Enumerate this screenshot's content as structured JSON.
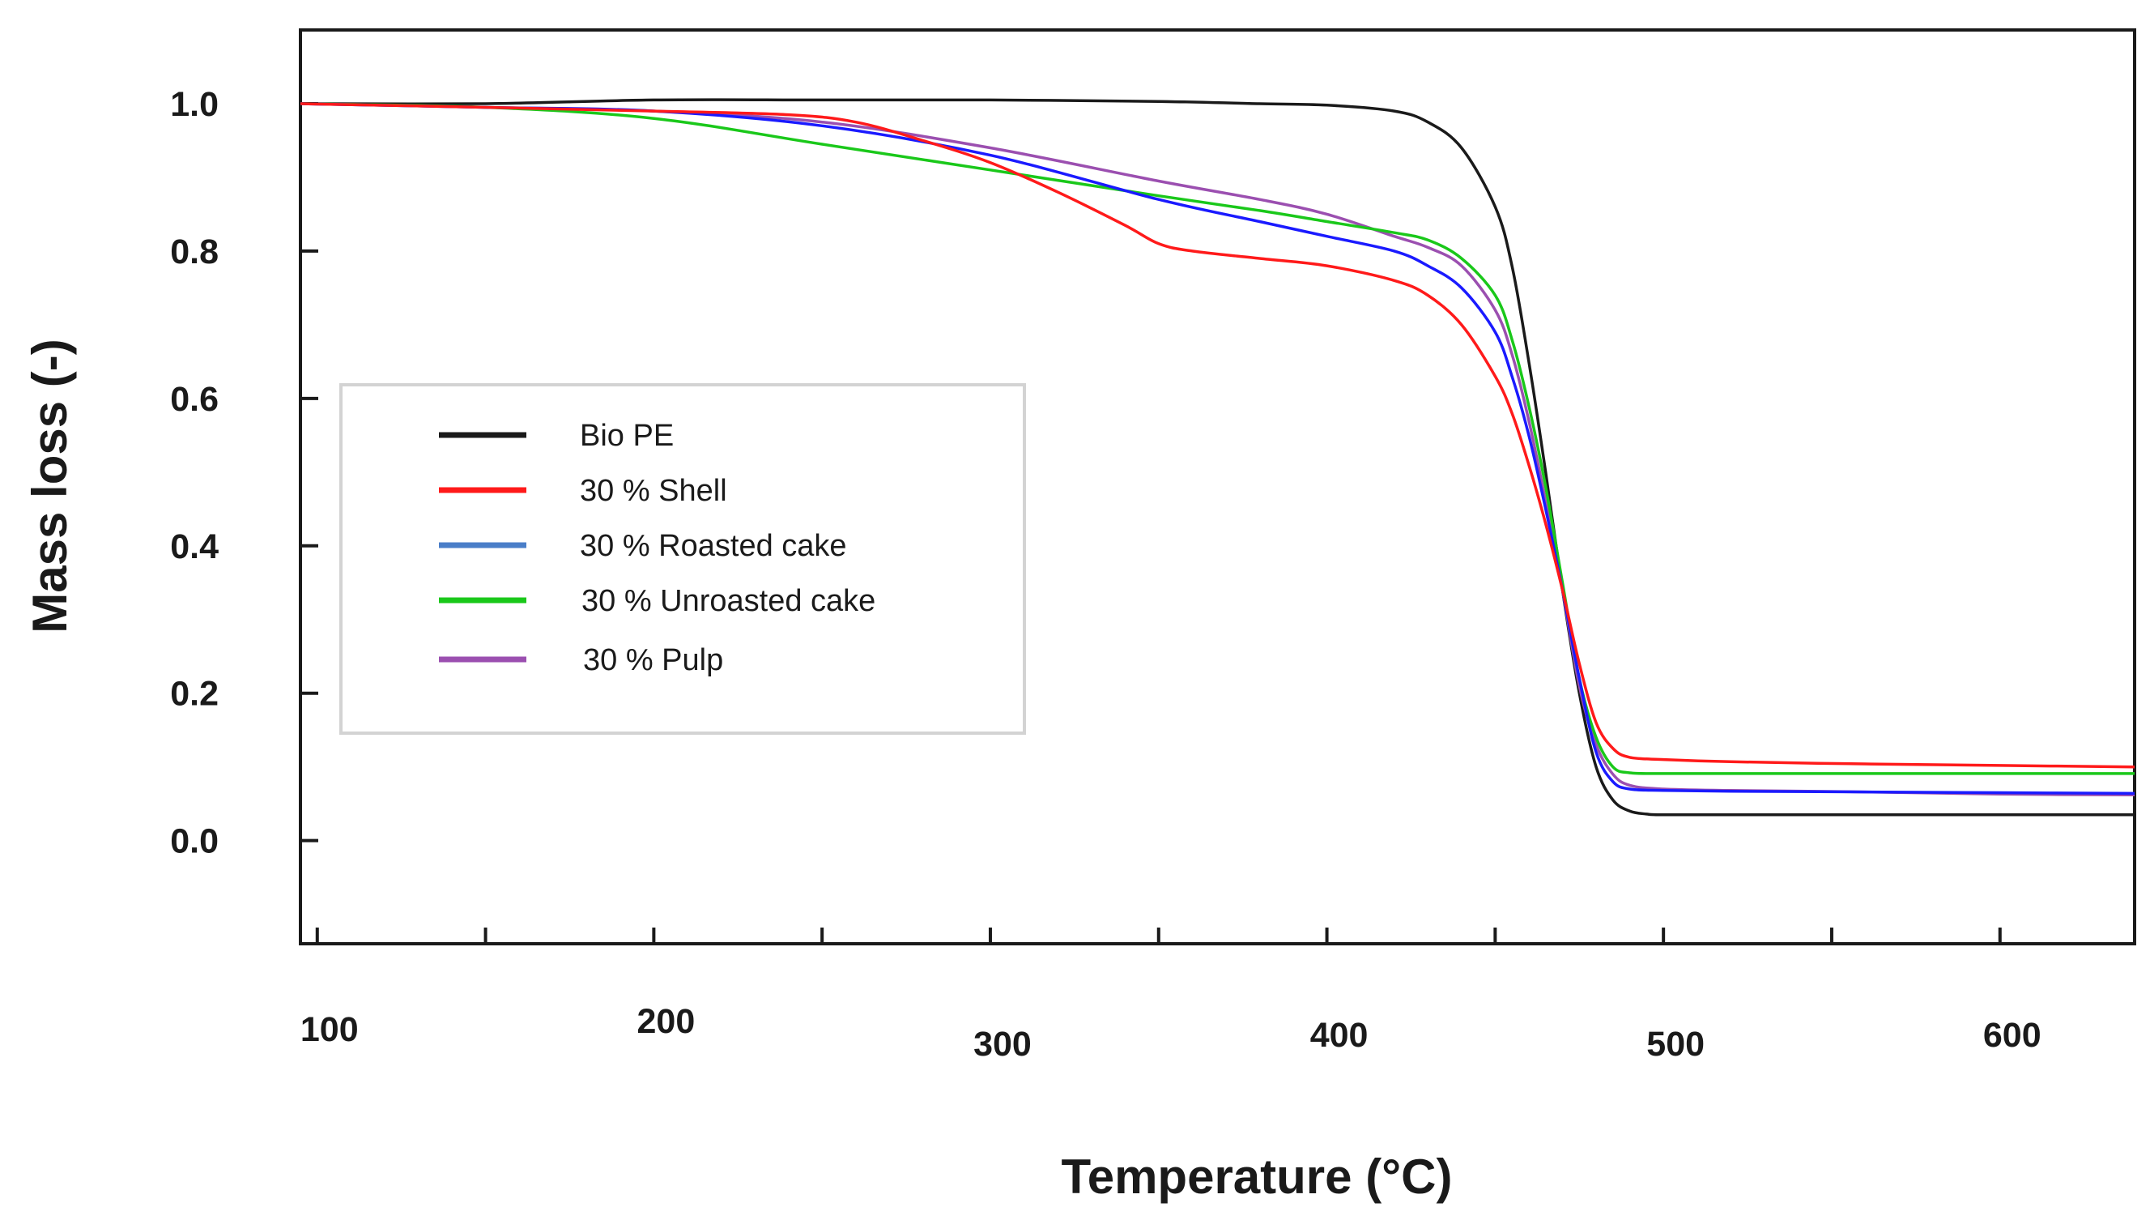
{
  "chart_data": {
    "type": "line",
    "title": "",
    "xlabel": "Temperature (°C)",
    "ylabel": "Mass loss (-)",
    "xlim": [
      95,
      640
    ],
    "ylim": [
      -0.14,
      1.1
    ],
    "x_ticks": [
      "100",
      "200",
      "300",
      "400",
      "500",
      "600"
    ],
    "y_ticks": [
      "1.0",
      "0.8",
      "0.6",
      "0.4",
      "0.2",
      "0.0"
    ],
    "grid": false,
    "legend_position": "center-left",
    "series": [
      {
        "name": "Bio PE",
        "color": "#1a1a1a",
        "x": [
          95,
          150,
          200,
          250,
          300,
          350,
          380,
          400,
          420,
          430,
          440,
          450,
          455,
          460,
          465,
          470,
          475,
          480,
          485,
          490,
          495,
          500,
          520,
          560,
          600,
          640
        ],
        "y": [
          1.0,
          1.0,
          1.005,
          1.005,
          1.005,
          1.003,
          1.0,
          0.998,
          0.99,
          0.975,
          0.94,
          0.86,
          0.78,
          0.65,
          0.5,
          0.34,
          0.2,
          0.1,
          0.055,
          0.04,
          0.036,
          0.035,
          0.035,
          0.035,
          0.035,
          0.035
        ]
      },
      {
        "name": "30 % Shell",
        "color": "#ff1a1a",
        "x": [
          95,
          150,
          200,
          240,
          260,
          280,
          300,
          320,
          340,
          350,
          360,
          380,
          400,
          420,
          430,
          440,
          450,
          455,
          460,
          465,
          470,
          475,
          480,
          485,
          490,
          500,
          520,
          560,
          600,
          640
        ],
        "y": [
          1.0,
          0.995,
          0.99,
          0.985,
          0.975,
          0.95,
          0.92,
          0.88,
          0.835,
          0.81,
          0.8,
          0.79,
          0.78,
          0.76,
          0.74,
          0.7,
          0.63,
          0.58,
          0.51,
          0.43,
          0.34,
          0.24,
          0.16,
          0.125,
          0.113,
          0.11,
          0.107,
          0.104,
          0.102,
          0.1
        ]
      },
      {
        "name": "30 % Roasted cake",
        "color": "#1a1aff",
        "x": [
          95,
          150,
          200,
          250,
          300,
          350,
          380,
          400,
          420,
          430,
          440,
          450,
          455,
          460,
          465,
          470,
          475,
          480,
          485,
          490,
          500,
          520,
          560,
          600,
          640
        ],
        "y": [
          1.0,
          0.995,
          0.99,
          0.97,
          0.93,
          0.87,
          0.84,
          0.82,
          0.8,
          0.78,
          0.75,
          0.69,
          0.63,
          0.55,
          0.45,
          0.34,
          0.22,
          0.12,
          0.08,
          0.07,
          0.068,
          0.067,
          0.066,
          0.065,
          0.064
        ]
      },
      {
        "name": "30 % Unroasted cake",
        "color": "#1ac81a",
        "x": [
          95,
          150,
          200,
          250,
          300,
          350,
          380,
          400,
          420,
          430,
          440,
          450,
          455,
          460,
          465,
          470,
          475,
          480,
          485,
          490,
          500,
          520,
          560,
          600,
          640
        ],
        "y": [
          1.0,
          0.995,
          0.98,
          0.945,
          0.91,
          0.875,
          0.855,
          0.84,
          0.825,
          0.815,
          0.79,
          0.74,
          0.68,
          0.59,
          0.48,
          0.35,
          0.22,
          0.14,
          0.1,
          0.092,
          0.091,
          0.091,
          0.091,
          0.091,
          0.091
        ]
      },
      {
        "name": "30 % Pulp",
        "color": "#9b4fb0",
        "x": [
          95,
          150,
          200,
          250,
          300,
          350,
          380,
          400,
          420,
          430,
          440,
          450,
          455,
          460,
          465,
          470,
          475,
          480,
          485,
          490,
          500,
          520,
          560,
          600,
          640
        ],
        "y": [
          1.0,
          0.995,
          0.99,
          0.975,
          0.94,
          0.895,
          0.87,
          0.85,
          0.82,
          0.805,
          0.78,
          0.72,
          0.66,
          0.57,
          0.46,
          0.34,
          0.21,
          0.13,
          0.09,
          0.075,
          0.07,
          0.068,
          0.066,
          0.063,
          0.062
        ]
      }
    ]
  }
}
